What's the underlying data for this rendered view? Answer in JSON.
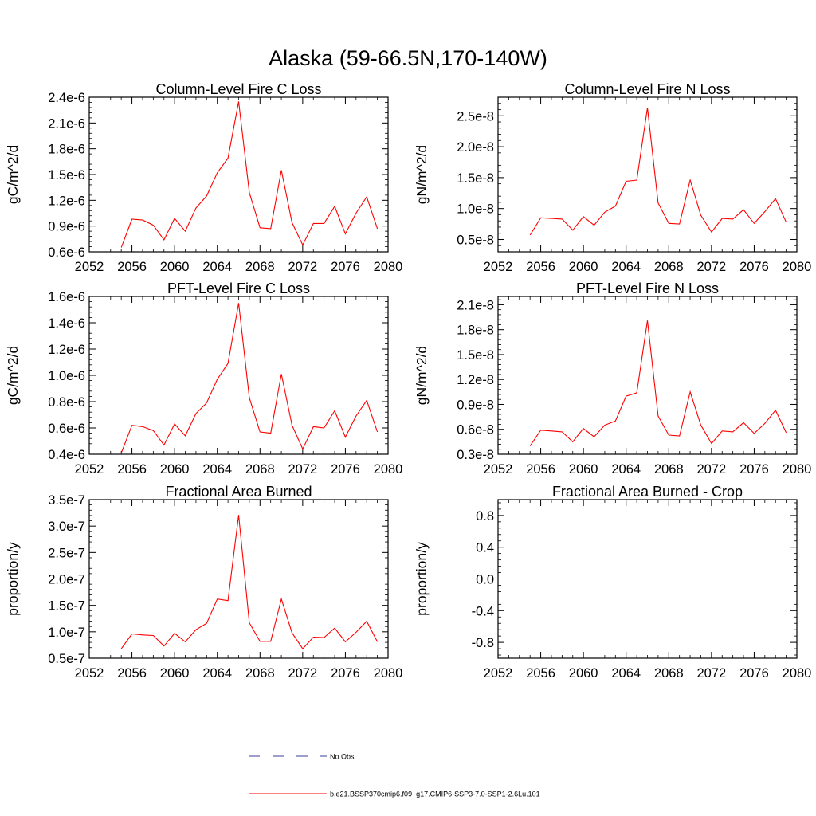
{
  "figure": {
    "title": "Alaska (59-66.5N,170-140W)"
  },
  "legend": {
    "items": [
      {
        "label": "No Obs",
        "color": "#3d3d9c",
        "dash": true
      },
      {
        "label": "b.e21.BSSP370cmip6.f09_g17.CMIP6-SSP3-7.0-SSP1-2.6Lu.101",
        "color": "#ff0000",
        "dash": false
      }
    ]
  },
  "chart_data": [
    {
      "type": "line",
      "title": "Column-Level Fire C Loss",
      "xlabel": "",
      "ylabel": "gC/m^2/d",
      "xlim": [
        2052,
        2080
      ],
      "ylim": [
        6e-07,
        2.4e-06
      ],
      "xticks": [
        2052,
        2056,
        2060,
        2064,
        2068,
        2072,
        2076,
        2080
      ],
      "xtick_labels": [
        "2052",
        "2056",
        "2060",
        "2064",
        "2068",
        "2072",
        "2076",
        "2080"
      ],
      "yticks": [
        6e-07,
        9e-07,
        1.2e-06,
        1.5e-06,
        1.8e-06,
        2.1e-06,
        2.4e-06
      ],
      "ytick_labels": [
        "0.6e-6",
        "0.9e-6",
        "1.2e-6",
        "1.5e-6",
        "1.8e-6",
        "2.1e-6",
        "2.4e-6"
      ],
      "x": [
        2055,
        2056,
        2057,
        2058,
        2059,
        2060,
        2061,
        2062,
        2063,
        2064,
        2065,
        2066,
        2067,
        2068,
        2069,
        2070,
        2071,
        2072,
        2073,
        2074,
        2075,
        2076,
        2077,
        2078,
        2079
      ],
      "series": [
        {
          "color": "#ff0000",
          "values": [
            6.5e-07,
            9.8e-07,
            9.7e-07,
            9.1e-07,
            7.4e-07,
            9.9e-07,
            8.4e-07,
            1.11e-06,
            1.25e-06,
            1.52e-06,
            1.69e-06,
            2.35e-06,
            1.29e-06,
            8.8e-07,
            8.7e-07,
            1.55e-06,
            9.4e-07,
            6.8e-07,
            9.3e-07,
            9.3e-07,
            1.13e-06,
            8.1e-07,
            1.05e-06,
            1.24e-06,
            8.7e-07
          ]
        }
      ]
    },
    {
      "type": "line",
      "title": "Column-Level Fire N Loss",
      "xlabel": "",
      "ylabel": "gN/m^2/d",
      "xlim": [
        2052,
        2080
      ],
      "ylim": [
        3e-09,
        2.8e-08
      ],
      "xticks": [
        2052,
        2056,
        2060,
        2064,
        2068,
        2072,
        2076,
        2080
      ],
      "xtick_labels": [
        "2052",
        "2056",
        "2060",
        "2064",
        "2068",
        "2072",
        "2076",
        "2080"
      ],
      "yticks": [
        5e-09,
        1e-08,
        1.5e-08,
        2e-08,
        2.5e-08
      ],
      "ytick_labels": [
        "0.5e-8",
        "1.0e-8",
        "1.5e-8",
        "2.0e-8",
        "2.5e-8"
      ],
      "x": [
        2055,
        2056,
        2057,
        2058,
        2059,
        2060,
        2061,
        2062,
        2063,
        2064,
        2065,
        2066,
        2067,
        2068,
        2069,
        2070,
        2071,
        2072,
        2073,
        2074,
        2075,
        2076,
        2077,
        2078,
        2079
      ],
      "series": [
        {
          "color": "#ff0000",
          "values": [
            5.7e-09,
            8.5e-09,
            8.4e-09,
            8.3e-09,
            6.5e-09,
            8.7e-09,
            7.3e-09,
            9.4e-09,
            1.04e-08,
            1.44e-08,
            1.46e-08,
            2.63e-08,
            1.09e-08,
            7.6e-09,
            7.5e-09,
            1.46e-08,
            8.9e-09,
            6.2e-09,
            8.4e-09,
            8.3e-09,
            9.8e-09,
            7.6e-09,
            9.5e-09,
            1.16e-08,
            7.8e-09
          ]
        }
      ]
    },
    {
      "type": "line",
      "title": "PFT-Level Fire C Loss",
      "xlabel": "",
      "ylabel": "gC/m^2/d",
      "xlim": [
        2052,
        2080
      ],
      "ylim": [
        4e-07,
        1.6e-06
      ],
      "xticks": [
        2052,
        2056,
        2060,
        2064,
        2068,
        2072,
        2076,
        2080
      ],
      "xtick_labels": [
        "2052",
        "2056",
        "2060",
        "2064",
        "2068",
        "2072",
        "2076",
        "2080"
      ],
      "yticks": [
        4e-07,
        6e-07,
        8e-07,
        1e-06,
        1.2e-06,
        1.4e-06,
        1.6e-06
      ],
      "ytick_labels": [
        "0.4e-6",
        "0.6e-6",
        "0.8e-6",
        "1.0e-6",
        "1.2e-6",
        "1.4e-6",
        "1.6e-6"
      ],
      "x": [
        2055,
        2056,
        2057,
        2058,
        2059,
        2060,
        2061,
        2062,
        2063,
        2064,
        2065,
        2066,
        2067,
        2068,
        2069,
        2070,
        2071,
        2072,
        2073,
        2074,
        2075,
        2076,
        2077,
        2078,
        2079
      ],
      "series": [
        {
          "color": "#ff0000",
          "values": [
            4.1e-07,
            6.2e-07,
            6.1e-07,
            5.8e-07,
            4.7e-07,
            6.3e-07,
            5.4e-07,
            7.1e-07,
            7.9e-07,
            9.7e-07,
            1.09e-06,
            1.55e-06,
            8.3e-07,
            5.7e-07,
            5.6e-07,
            1.01e-06,
            6.2e-07,
            4.4e-07,
            6.1e-07,
            6e-07,
            7.3e-07,
            5.3e-07,
            6.9e-07,
            8.1e-07,
            5.7e-07
          ]
        }
      ]
    },
    {
      "type": "line",
      "title": "PFT-Level Fire N Loss",
      "xlabel": "",
      "ylabel": "gN/m^2/d",
      "xlim": [
        2052,
        2080
      ],
      "ylim": [
        3e-09,
        2.2e-08
      ],
      "xticks": [
        2052,
        2056,
        2060,
        2064,
        2068,
        2072,
        2076,
        2080
      ],
      "xtick_labels": [
        "2052",
        "2056",
        "2060",
        "2064",
        "2068",
        "2072",
        "2076",
        "2080"
      ],
      "yticks": [
        3e-09,
        6e-09,
        9e-09,
        1.2e-08,
        1.5e-08,
        1.8e-08,
        2.1e-08
      ],
      "ytick_labels": [
        "0.3e-8",
        "0.6e-8",
        "0.9e-8",
        "1.2e-8",
        "1.5e-8",
        "1.8e-8",
        "2.1e-8"
      ],
      "x": [
        2055,
        2056,
        2057,
        2058,
        2059,
        2060,
        2061,
        2062,
        2063,
        2064,
        2065,
        2066,
        2067,
        2068,
        2069,
        2070,
        2071,
        2072,
        2073,
        2074,
        2075,
        2076,
        2077,
        2078,
        2079
      ],
      "series": [
        {
          "color": "#ff0000",
          "values": [
            4e-09,
            5.9e-09,
            5.8e-09,
            5.7e-09,
            4.5e-09,
            6.1e-09,
            5.1e-09,
            6.5e-09,
            7e-09,
            1e-08,
            1.04e-08,
            1.91e-08,
            7.6e-09,
            5.3e-09,
            5.2e-09,
            1.05e-08,
            6.5e-09,
            4.3e-09,
            5.8e-09,
            5.7e-09,
            6.8e-09,
            5.5e-09,
            6.7e-09,
            8.3e-09,
            5.6e-09
          ]
        }
      ]
    },
    {
      "type": "line",
      "title": "Fractional Area Burned",
      "xlabel": "",
      "ylabel": "proportion/y",
      "xlim": [
        2052,
        2080
      ],
      "ylim": [
        5e-08,
        3.5e-07
      ],
      "xticks": [
        2052,
        2056,
        2060,
        2064,
        2068,
        2072,
        2076,
        2080
      ],
      "xtick_labels": [
        "2052",
        "2056",
        "2060",
        "2064",
        "2068",
        "2072",
        "2076",
        "2080"
      ],
      "yticks": [
        5e-08,
        1e-07,
        1.5e-07,
        2e-07,
        2.5e-07,
        3e-07,
        3.5e-07
      ],
      "ytick_labels": [
        "0.5e-7",
        "1.0e-7",
        "1.5e-7",
        "2.0e-7",
        "2.5e-7",
        "3.0e-7",
        "3.5e-7"
      ],
      "x": [
        2055,
        2056,
        2057,
        2058,
        2059,
        2060,
        2061,
        2062,
        2063,
        2064,
        2065,
        2066,
        2067,
        2068,
        2069,
        2070,
        2071,
        2072,
        2073,
        2074,
        2075,
        2076,
        2077,
        2078,
        2079
      ],
      "series": [
        {
          "color": "#ff0000",
          "values": [
            6.8e-08,
            9.6e-08,
            9.4e-08,
            9.3e-08,
            7.3e-08,
            9.7e-08,
            8.1e-08,
            1.04e-07,
            1.16e-07,
            1.62e-07,
            1.59e-07,
            3.21e-07,
            1.17e-07,
            8.2e-08,
            8.2e-08,
            1.62e-07,
            9.8e-08,
            6.8e-08,
            9e-08,
            8.9e-08,
            1.07e-07,
            8.1e-08,
            9.9e-08,
            1.2e-07,
            8.1e-08
          ]
        }
      ]
    },
    {
      "type": "line",
      "title": "Fractional Area Burned - Crop",
      "xlabel": "",
      "ylabel": "proportion/y",
      "xlim": [
        2052,
        2080
      ],
      "ylim": [
        -1.0,
        1.0
      ],
      "xticks": [
        2052,
        2056,
        2060,
        2064,
        2068,
        2072,
        2076,
        2080
      ],
      "xtick_labels": [
        "2052",
        "2056",
        "2060",
        "2064",
        "2068",
        "2072",
        "2076",
        "2080"
      ],
      "yticks": [
        -0.8,
        -0.4,
        0.0,
        0.4,
        0.8
      ],
      "ytick_labels": [
        "-0.8",
        "-0.4",
        "0.0",
        "0.4",
        "0.8"
      ],
      "x": [
        2055,
        2056,
        2057,
        2058,
        2059,
        2060,
        2061,
        2062,
        2063,
        2064,
        2065,
        2066,
        2067,
        2068,
        2069,
        2070,
        2071,
        2072,
        2073,
        2074,
        2075,
        2076,
        2077,
        2078,
        2079
      ],
      "series": [
        {
          "color": "#ff0000",
          "values": [
            0,
            0,
            0,
            0,
            0,
            0,
            0,
            0,
            0,
            0,
            0,
            0,
            0,
            0,
            0,
            0,
            0,
            0,
            0,
            0,
            0,
            0,
            0,
            0,
            0
          ]
        }
      ]
    }
  ]
}
